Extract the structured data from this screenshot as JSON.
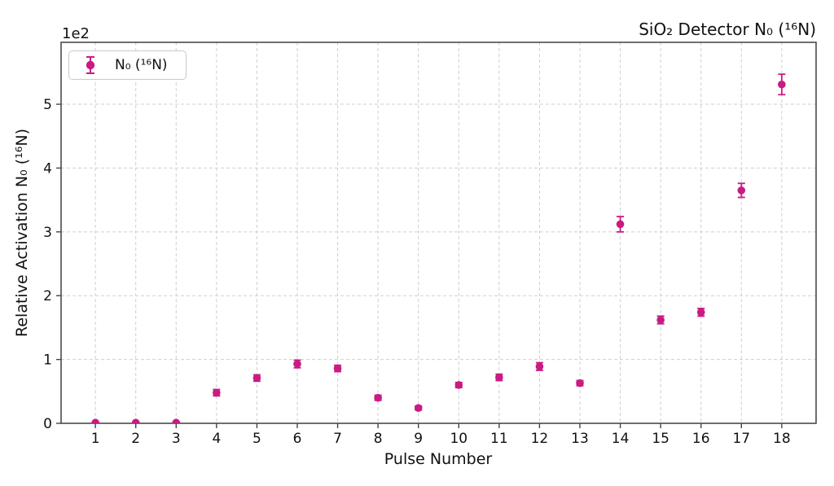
{
  "figure": {
    "title": "SiO₂ Detector N₀ (¹⁶N)",
    "offset_text": "1e2"
  },
  "chart_data": {
    "type": "scatter",
    "title": "SiO₂ Detector N₀ (¹⁶N)",
    "xlabel": "Pulse Number",
    "ylabel": "Relative Activation N₀ (¹⁶N)",
    "y_offset_text": "1e2",
    "grid": true,
    "legend": {
      "position": "upper-left",
      "entries": [
        "N₀ (¹⁶N)"
      ]
    },
    "colors": {
      "marker": "#C91B83",
      "grid": "#cfcfcf",
      "spine": "#4a4a4a",
      "tick": "#444444",
      "text": "#111111"
    },
    "xlim": [
      0.15,
      18.85
    ],
    "ylim": [
      0,
      597
    ],
    "x_ticks": [
      1,
      2,
      3,
      4,
      5,
      6,
      7,
      8,
      9,
      10,
      11,
      12,
      13,
      14,
      15,
      16,
      17,
      18
    ],
    "y_ticks": {
      "values": [
        0,
        100,
        200,
        300,
        400,
        500
      ],
      "labels": [
        "0",
        "1",
        "2",
        "3",
        "4",
        "5"
      ]
    },
    "series": [
      {
        "name": "N₀ (¹⁶N)",
        "x": [
          1,
          2,
          3,
          4,
          5,
          6,
          7,
          8,
          9,
          10,
          11,
          12,
          13,
          14,
          15,
          16,
          17,
          18
        ],
        "y": [
          1,
          1,
          1,
          48,
          71,
          93,
          86,
          40,
          24,
          60,
          72,
          89,
          63,
          312,
          162,
          174,
          365,
          531
        ],
        "yerr": [
          1,
          1,
          1,
          5,
          5,
          6,
          5,
          4,
          3,
          4,
          5,
          6,
          4,
          12,
          6,
          6,
          11,
          16
        ]
      }
    ]
  }
}
